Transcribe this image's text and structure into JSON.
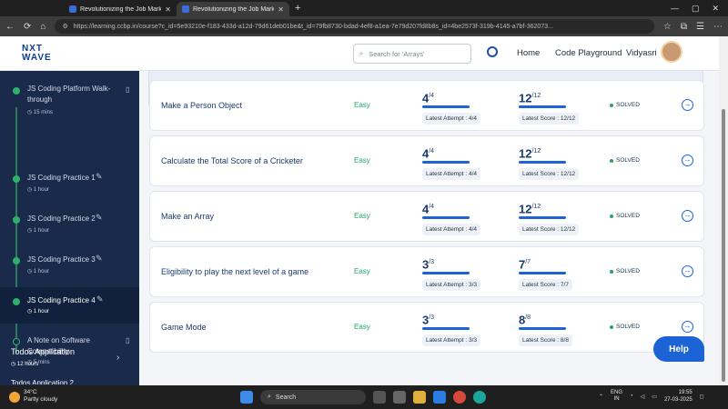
{
  "browser": {
    "tabs": [
      {
        "title": "Revolutionizing the Job Market | N"
      },
      {
        "title": "Revolutionizing the Job Market | N"
      }
    ],
    "url": "https://learning.ccbp.in/course?c_id=5e93210e-f183-433d-a12d-79d61deb01be&t_id=79fb8730-bdad-4ef8-a1ea-7e79d207fd8b8s_id=4be2573f-319b-4145-a7bf-362073..."
  },
  "header": {
    "logo_line1": "NXT",
    "logo_line2": "WAVE",
    "search_placeholder": "Search for 'Arrays'",
    "nav": [
      "Home",
      "Code Playground"
    ],
    "username": "Vidyasri"
  },
  "sidebar": {
    "items": [
      {
        "title": "JS Coding Platform Walk-through",
        "time": "15 mins"
      },
      {
        "title": "JS Coding Practice 1",
        "time": "1 hour"
      },
      {
        "title": "JS Coding Practice 2",
        "time": "1 hour"
      },
      {
        "title": "JS Coding Practice 3",
        "time": "1 hour"
      },
      {
        "title": "JS Coding Practice 4",
        "time": "1 hour"
      },
      {
        "title": "A Note on Software Compatibility",
        "time": "5 mins"
      }
    ],
    "section": {
      "title": "Todos Application",
      "time": "12 hours"
    },
    "next_partial": "Todos Application 2"
  },
  "questions": [
    {
      "title": "Make a Person Object",
      "difficulty": "Easy",
      "attempt": "4",
      "attempt_total": "/4",
      "attempt_label": "Latest Attempt : 4/4",
      "score": "12",
      "score_total": "/12",
      "score_label": "Latest Score : 12/12",
      "status": "SOLVED"
    },
    {
      "title": "Calculate the Total Score of a Cricketer",
      "difficulty": "Easy",
      "attempt": "4",
      "attempt_total": "/4",
      "attempt_label": "Latest Attempt : 4/4",
      "score": "12",
      "score_total": "/12",
      "score_label": "Latest Score : 12/12",
      "status": "SOLVED"
    },
    {
      "title": "Make an Array",
      "difficulty": "Easy",
      "attempt": "4",
      "attempt_total": "/4",
      "attempt_label": "Latest Attempt : 4/4",
      "score": "12",
      "score_total": "/12",
      "score_label": "Latest Score : 12/12",
      "status": "SOLVED"
    },
    {
      "title": "Eligibility to play the next level of a game",
      "difficulty": "Easy",
      "attempt": "3",
      "attempt_total": "/3",
      "attempt_label": "Latest Attempt : 3/3",
      "score": "7",
      "score_total": "/7",
      "score_label": "Latest Score : 7/7",
      "status": "SOLVED"
    },
    {
      "title": "Game Mode",
      "difficulty": "Easy",
      "attempt": "3",
      "attempt_total": "/3",
      "attempt_label": "Latest Attempt : 3/3",
      "score": "8",
      "score_total": "/8",
      "score_label": "Latest Score : 8/8",
      "status": "SOLVED"
    }
  ],
  "help_label": "Help",
  "taskbar": {
    "temp": "34°C",
    "weather": "Partly cloudy",
    "search": "Search",
    "lang1": "ENG",
    "lang2": "IN",
    "time": "19:55",
    "date": "27-03-2025"
  }
}
